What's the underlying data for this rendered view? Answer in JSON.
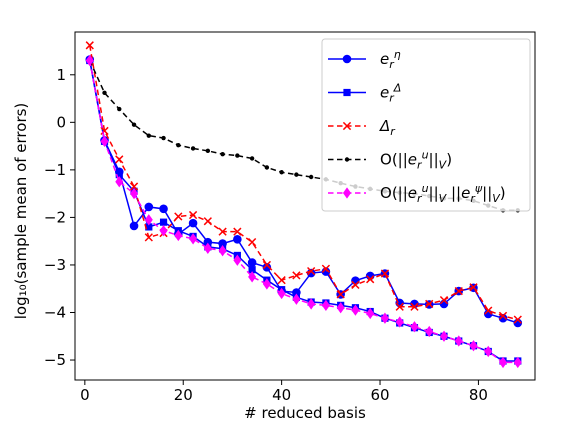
{
  "chart_data": {
    "type": "line",
    "title": "",
    "xlabel": "# reduced basis",
    "ylabel": "log₁₀(sample mean of errors)",
    "xlim": [
      -2,
      91.5
    ],
    "ylim": [
      -5.42,
      1.9
    ],
    "xticks": [
      0,
      20,
      40,
      60,
      80
    ],
    "yticks": [
      1,
      0,
      -1,
      -2,
      -3,
      -4,
      -5
    ],
    "xtick_labels": [
      "0",
      "20",
      "40",
      "60",
      "80"
    ],
    "ytick_labels": [
      "1",
      "0",
      "−1",
      "−2",
      "−3",
      "−4",
      "−5"
    ],
    "legend_position": "top-right",
    "grid": false,
    "x": [
      1,
      4,
      7,
      10,
      13,
      16,
      19,
      22,
      25,
      28,
      31,
      34,
      37,
      40,
      43,
      46,
      49,
      52,
      55,
      58,
      61,
      64,
      67,
      70,
      73,
      76,
      79,
      82,
      85,
      88
    ],
    "series": [
      {
        "name": "e_r^η",
        "color": "#0000ff",
        "marker": "circle",
        "dash": "solid",
        "values": [
          1.32,
          -0.38,
          -1.04,
          -2.18,
          -1.78,
          -1.82,
          -2.35,
          -2.12,
          -2.52,
          -2.55,
          -2.46,
          -2.95,
          -3.05,
          -3.55,
          -3.58,
          -3.17,
          -3.14,
          -3.62,
          -3.33,
          -3.23,
          -3.18,
          -3.8,
          -3.82,
          -3.83,
          -3.82,
          -3.55,
          -3.48,
          -4.03,
          -4.12,
          -4.22
        ]
      },
      {
        "name": "e_r^Δ",
        "color": "#0000ff",
        "marker": "square",
        "dash": "solid",
        "values": [
          1.3,
          -0.4,
          -1.1,
          -1.45,
          -2.2,
          -2.1,
          -2.28,
          -2.4,
          -2.62,
          -2.66,
          -2.8,
          -3.1,
          -3.32,
          -3.52,
          -3.68,
          -3.78,
          -3.8,
          -3.85,
          -3.9,
          -3.98,
          -4.12,
          -4.22,
          -4.32,
          -4.42,
          -4.5,
          -4.6,
          -4.7,
          -4.82,
          -5.02,
          -5.02
        ]
      },
      {
        "name": "Δ_r",
        "color": "#ff0000",
        "marker": "x",
        "dash": "dashed",
        "values": [
          1.62,
          -0.18,
          -0.78,
          -1.35,
          -2.42,
          -2.33,
          -1.98,
          -1.95,
          -2.08,
          -2.3,
          -2.3,
          -2.52,
          -3.0,
          -3.32,
          -3.22,
          -3.13,
          -3.08,
          -3.62,
          -3.42,
          -3.3,
          -3.18,
          -3.88,
          -3.88,
          -3.82,
          -3.74,
          -3.55,
          -3.47,
          -3.96,
          -4.07,
          -4.15
        ]
      },
      {
        "name": "O(||e_r^u||_V)",
        "color": "#000000",
        "marker": "dot",
        "dash": "dashed",
        "values": [
          1.3,
          0.62,
          0.28,
          -0.05,
          -0.28,
          -0.33,
          -0.48,
          -0.55,
          -0.6,
          -0.67,
          -0.7,
          -0.76,
          -0.95,
          -1.05,
          -1.1,
          -1.15,
          -1.2,
          -1.28,
          -1.35,
          -1.4,
          -1.45,
          -1.48,
          -1.5,
          -1.55,
          -1.6,
          -1.6,
          -1.65,
          -1.75,
          -1.85,
          -1.85
        ]
      },
      {
        "name": "O(||e_r^u||_V ||e_r^ψ||_V)",
        "color": "#ff00ff",
        "marker": "diamond",
        "dash": "dashed",
        "values": [
          1.3,
          -0.4,
          -1.25,
          -1.5,
          -2.05,
          -2.28,
          -2.38,
          -2.45,
          -2.65,
          -2.7,
          -2.9,
          -3.25,
          -3.4,
          -3.6,
          -3.72,
          -3.82,
          -3.85,
          -3.9,
          -3.95,
          -4.02,
          -4.12,
          -4.2,
          -4.3,
          -4.4,
          -4.5,
          -4.6,
          -4.7,
          -4.82,
          -5.05,
          -5.05
        ]
      }
    ]
  }
}
